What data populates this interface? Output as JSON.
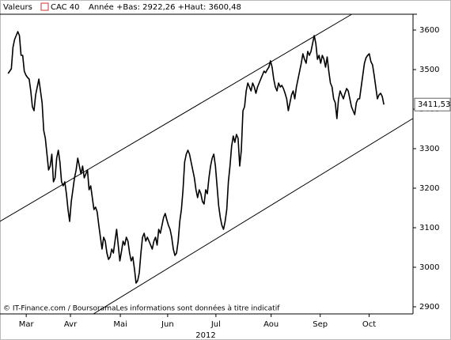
{
  "header": {
    "label": "Valeurs",
    "range": "Année +Bas: 2922,26 +Haut: 3600,48"
  },
  "footer": "© IT-Finance.com / BoursoramaLes informations sont données à titre indicatif",
  "chart_data": {
    "type": "line",
    "xlabel": "2012",
    "series": [
      {
        "name": "CAC 40",
        "color": "#000000",
        "values": [
          3490,
          3496,
          3502,
          3556,
          3576,
          3586,
          3596,
          3586,
          3536,
          3536,
          3496,
          3486,
          3480,
          3476,
          3446,
          3406,
          3396,
          3436,
          3456,
          3476,
          3446,
          3416,
          3346,
          3326,
          3286,
          3246,
          3256,
          3286,
          3216,
          3226,
          3276,
          3296,
          3266,
          3216,
          3206,
          3216,
          3186,
          3146,
          3116,
          3166,
          3196,
          3226,
          3246,
          3276,
          3256,
          3236,
          3256,
          3226,
          3236,
          3246,
          3196,
          3206,
          3176,
          3146,
          3152,
          3140,
          3106,
          3076,
          3046,
          3076,
          3066,
          3036,
          3020,
          3026,
          3046,
          3036,
          3066,
          3096,
          3056,
          3016,
          3040,
          3066,
          3056,
          3076,
          3066,
          3036,
          3016,
          3026,
          2996,
          2960,
          2966,
          2986,
          3036,
          3076,
          3086,
          3066,
          3076,
          3066,
          3056,
          3046,
          3066,
          3076,
          3056,
          3096,
          3086,
          3106,
          3126,
          3136,
          3120,
          3106,
          3096,
          3076,
          3046,
          3030,
          3036,
          3066,
          3116,
          3146,
          3196,
          3266,
          3286,
          3296,
          3286,
          3266,
          3246,
          3226,
          3196,
          3176,
          3196,
          3186,
          3166,
          3160,
          3196,
          3186,
          3226,
          3256,
          3276,
          3286,
          3256,
          3206,
          3156,
          3126,
          3106,
          3096,
          3116,
          3146,
          3216,
          3256,
          3306,
          3332,
          3316,
          3336,
          3326,
          3256,
          3296,
          3396,
          3406,
          3446,
          3466,
          3456,
          3446,
          3466,
          3456,
          3440,
          3456,
          3466,
          3476,
          3486,
          3496,
          3492,
          3500,
          3506,
          3522,
          3506,
          3476,
          3456,
          3446,
          3466,
          3456,
          3460,
          3452,
          3440,
          3426,
          3396,
          3416,
          3436,
          3446,
          3426,
          3456,
          3476,
          3496,
          3516,
          3540,
          3526,
          3516,
          3546,
          3536,
          3546,
          3566,
          3586,
          3566,
          3526,
          3536,
          3516,
          3536,
          3526,
          3506,
          3532,
          3496,
          3466,
          3456,
          3426,
          3416,
          3376,
          3426,
          3446,
          3436,
          3426,
          3440,
          3452,
          3446,
          3426,
          3406,
          3396,
          3386,
          3416,
          3426,
          3426,
          3456,
          3486,
          3516,
          3530,
          3536,
          3540,
          3520,
          3512,
          3486,
          3456,
          3426,
          3436,
          3440,
          3432,
          3411.53
        ]
      }
    ],
    "last_value_label": "3411,53",
    "channel_lines": [
      {
        "x": [
          -5,
          212.2
        ],
        "y": [
          3116,
          3640
        ]
      },
      {
        "x": [
          52.7,
          249.8
        ],
        "y": [
          2882,
          3376
        ]
      }
    ],
    "xlim": [
      -5,
      250
    ],
    "xticks": [
      {
        "value": 11.2,
        "label": "Mar"
      },
      {
        "value": 38.5,
        "label": "Avr"
      },
      {
        "value": 69.3,
        "label": "Mai"
      },
      {
        "value": 98.5,
        "label": "Jun"
      },
      {
        "value": 128.3,
        "label": "Jul"
      },
      {
        "value": 162.4,
        "label": "Aou"
      },
      {
        "value": 192.7,
        "label": "Sep"
      },
      {
        "value": 222.9,
        "label": "Oct"
      }
    ],
    "ylim": [
      2882,
      3640
    ],
    "yticks": [
      2900,
      3000,
      3100,
      3200,
      3300,
      3400,
      3500,
      3600
    ],
    "grid": false
  }
}
